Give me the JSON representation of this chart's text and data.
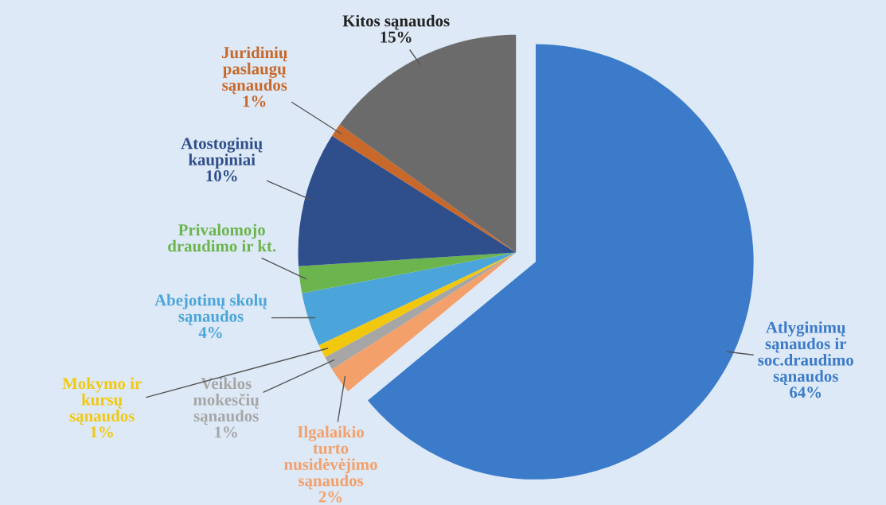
{
  "chart_data": {
    "type": "pie",
    "categories": [
      "Atlyginimų sąnaudos ir soc.draudimo sąnaudos",
      "Ilgalaikio turto nusidėvėjimo sąnaudos",
      "Veiklos mokesčių sąnaudos",
      "Mokymo ir kursų sąnaudos",
      "Abejotinų skolų sąnaudos",
      "Privalomojo draudimo ir kt.",
      "Atostoginių kaupiniai",
      "Juridinių paslaugų sąnaudos",
      "Kitos sąnaudos"
    ],
    "values": [
      64,
      2,
      1,
      1,
      4,
      2,
      10,
      1,
      15
    ],
    "value_labels": [
      "64%",
      "2%",
      "1%",
      "1%",
      "4%",
      null,
      "10%",
      "1%",
      "15%"
    ],
    "colors": [
      "#3b7bc9",
      "#f4a06a",
      "#a6a6a6",
      "#f2c80f",
      "#4ba5da",
      "#6cb54e",
      "#2f4e8c",
      "#c8682a",
      "#6b6b6b"
    ]
  }
}
